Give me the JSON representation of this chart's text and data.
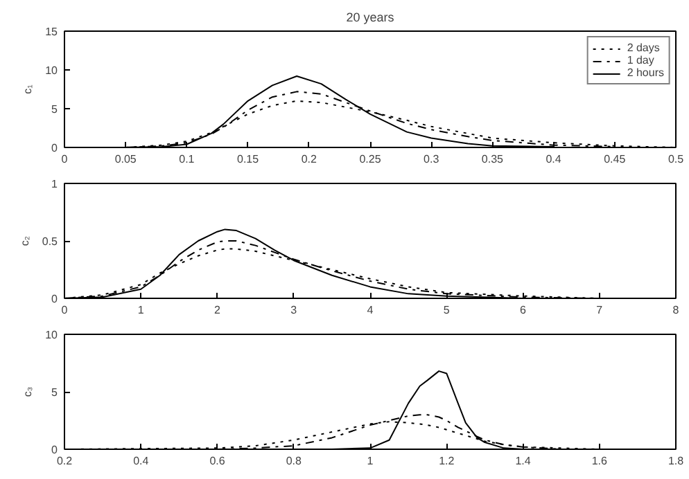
{
  "chart_data": [
    {
      "type": "line",
      "title": "20 years",
      "ylabel": "c₁",
      "legend": "top right",
      "grid": false,
      "xlim": [
        0,
        0.5
      ],
      "xticks": [
        0,
        0.05,
        0.1,
        0.15,
        0.2,
        0.25,
        0.3,
        0.35,
        0.4,
        0.45,
        0.5
      ],
      "ylim": [
        0,
        15
      ],
      "yticks": [
        0,
        5,
        10,
        15
      ],
      "series": [
        {
          "name": "2 days",
          "color": "#000000",
          "line_style": "dotted",
          "x": [
            0.05,
            0.08,
            0.1,
            0.12,
            0.13,
            0.15,
            0.17,
            0.19,
            0.21,
            0.23,
            0.25,
            0.28,
            0.3,
            0.33,
            0.35,
            0.4,
            0.45,
            0.5
          ],
          "values": [
            0,
            0.3,
            0.8,
            1.9,
            2.7,
            4.3,
            5.4,
            6,
            5.8,
            5.2,
            4.6,
            3.5,
            2.7,
            1.8,
            1.2,
            0.6,
            0.2,
            0
          ]
        },
        {
          "name": "1 day",
          "color": "#000000",
          "line_style": "dashdot",
          "x": [
            0.05,
            0.08,
            0.1,
            0.12,
            0.13,
            0.15,
            0.17,
            0.19,
            0.21,
            0.23,
            0.25,
            0.28,
            0.3,
            0.33,
            0.35,
            0.4,
            0.45
          ],
          "values": [
            0,
            0.2,
            0.6,
            1.7,
            2.6,
            4.8,
            6.5,
            7.2,
            6.9,
            5.8,
            4.7,
            3.1,
            2.3,
            1.4,
            0.9,
            0.3,
            0.1
          ]
        },
        {
          "name": "2 hours",
          "color": "#000000",
          "line_style": "solid",
          "x": [
            0.05,
            0.08,
            0.1,
            0.12,
            0.13,
            0.15,
            0.17,
            0.19,
            0.21,
            0.23,
            0.25,
            0.28,
            0.3,
            0.33,
            0.35,
            0.4
          ],
          "values": [
            0,
            0.1,
            0.4,
            1.8,
            3,
            6,
            8,
            9.2,
            8.2,
            6.2,
            4.3,
            2,
            1.2,
            0.5,
            0.2,
            0.1
          ]
        }
      ]
    },
    {
      "type": "line",
      "ylabel": "c₂",
      "grid": false,
      "xlim": [
        0,
        8
      ],
      "xticks": [
        0,
        1,
        2,
        3,
        4,
        5,
        6,
        7,
        8
      ],
      "ylim": [
        0,
        1
      ],
      "yticks": [
        0,
        0.5,
        1
      ],
      "series": [
        {
          "color": "#000000",
          "line_style": "dotted",
          "x": [
            0,
            0.5,
            1,
            1.25,
            1.5,
            1.75,
            2,
            2.1,
            2.25,
            2.5,
            2.75,
            3,
            3.5,
            4,
            4.5,
            5,
            6,
            7,
            8
          ],
          "values": [
            0,
            0.03,
            0.12,
            0.22,
            0.3,
            0.37,
            0.42,
            0.43,
            0.43,
            0.41,
            0.37,
            0.33,
            0.25,
            0.17,
            0.1,
            0.05,
            0.02,
            0,
            0
          ]
        },
        {
          "color": "#000000",
          "line_style": "dashdot",
          "x": [
            0,
            0.5,
            1,
            1.25,
            1.5,
            1.75,
            2,
            2.1,
            2.25,
            2.5,
            2.75,
            3,
            3.5,
            4,
            4.5,
            5,
            6,
            7
          ],
          "values": [
            0,
            0.02,
            0.1,
            0.2,
            0.32,
            0.42,
            0.49,
            0.5,
            0.5,
            0.46,
            0.4,
            0.34,
            0.24,
            0.15,
            0.08,
            0.04,
            0.01,
            0
          ]
        },
        {
          "color": "#000000",
          "line_style": "solid",
          "x": [
            0,
            0.5,
            1,
            1.25,
            1.5,
            1.75,
            2,
            2.1,
            2.25,
            2.5,
            2.75,
            3,
            3.5,
            4,
            4.5,
            5,
            6
          ],
          "values": [
            0,
            0.01,
            0.08,
            0.2,
            0.38,
            0.5,
            0.58,
            0.6,
            0.59,
            0.52,
            0.42,
            0.33,
            0.2,
            0.1,
            0.04,
            0.02,
            0
          ]
        }
      ]
    },
    {
      "type": "line",
      "ylabel": "c₃",
      "grid": false,
      "xlim": [
        0.2,
        1.8
      ],
      "xticks": [
        0.2,
        0.4,
        0.6,
        0.8,
        1,
        1.2,
        1.4,
        1.6,
        1.8
      ],
      "ylim": [
        0,
        10
      ],
      "yticks": [
        0,
        5,
        10
      ],
      "series": [
        {
          "color": "#000000",
          "line_style": "dotted",
          "x": [
            0.2,
            0.6,
            0.7,
            0.8,
            0.9,
            1,
            1.05,
            1.1,
            1.13,
            1.15,
            1.18,
            1.2,
            1.23,
            1.25,
            1.28,
            1.3,
            1.35,
            1.4,
            1.5,
            1.6,
            1.8
          ],
          "values": [
            0,
            0.1,
            0.3,
            0.8,
            1.5,
            2.2,
            2.4,
            2.3,
            2.2,
            2.1,
            1.9,
            1.7,
            1.4,
            1.2,
            0.9,
            0.7,
            0.4,
            0.2,
            0.1,
            0,
            0
          ]
        },
        {
          "color": "#000000",
          "line_style": "dashdot",
          "x": [
            0.6,
            0.7,
            0.8,
            0.9,
            1,
            1.05,
            1.1,
            1.13,
            1.15,
            1.18,
            1.2,
            1.23,
            1.25,
            1.28,
            1.3,
            1.35,
            1.4,
            1.5,
            1.6
          ],
          "values": [
            0,
            0.1,
            0.3,
            1,
            2.1,
            2.5,
            2.9,
            3,
            3,
            2.8,
            2.5,
            1.9,
            1.6,
            1.1,
            0.8,
            0.4,
            0.2,
            0,
            0
          ]
        },
        {
          "color": "#000000",
          "line_style": "solid",
          "x": [
            0.7,
            0.8,
            0.9,
            1,
            1.05,
            1.1,
            1.13,
            1.15,
            1.18,
            1.2,
            1.23,
            1.25,
            1.28,
            1.3,
            1.35,
            1.4,
            1.5
          ],
          "values": [
            0,
            0,
            0,
            0.1,
            0.8,
            4,
            5.5,
            6,
            6.8,
            6.6,
            4,
            2.3,
            1,
            0.6,
            0.1,
            0,
            0
          ]
        }
      ]
    }
  ]
}
